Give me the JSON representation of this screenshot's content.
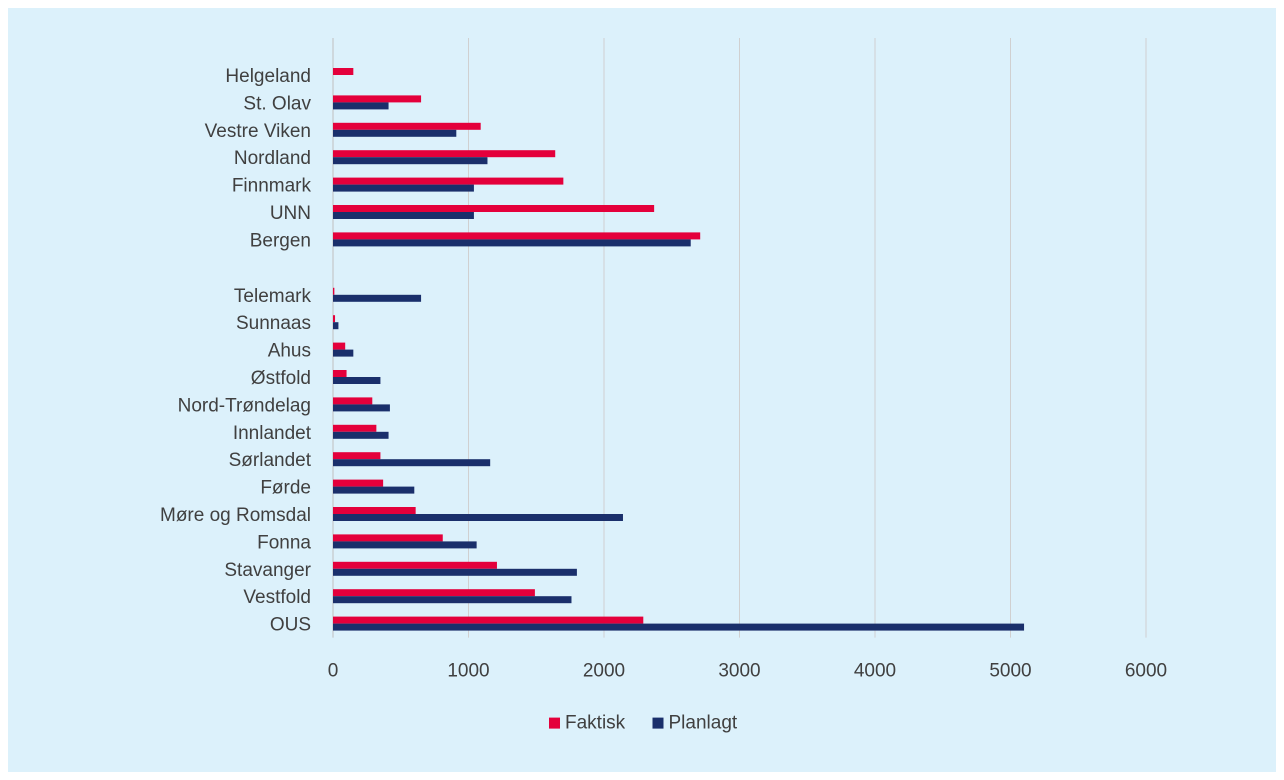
{
  "chart_data": {
    "type": "bar",
    "orientation": "horizontal",
    "groups": [
      [
        "Helgeland",
        "St. Olav",
        "Vestre Viken",
        "Nordland",
        "Finnmark",
        "UNN",
        "Bergen"
      ],
      [
        "Telemark",
        "Sunnaas",
        "Ahus",
        "Østfold",
        "Nord-Trøndelag",
        "Innlandet",
        "Sørlandet",
        "Førde",
        "Møre og Romsdal",
        "Fonna",
        "Stavanger",
        "Vestfold",
        "OUS"
      ]
    ],
    "categories": [
      "Helgeland",
      "St. Olav",
      "Vestre Viken",
      "Nordland",
      "Finnmark",
      "UNN",
      "Bergen",
      "Telemark",
      "Sunnaas",
      "Ahus",
      "Østfold",
      "Nord-Trøndelag",
      "Innlandet",
      "Sørlandet",
      "Førde",
      "Møre og Romsdal",
      "Fonna",
      "Stavanger",
      "Vestfold",
      "OUS"
    ],
    "series": [
      {
        "name": "Faktisk",
        "color": "#e4003b",
        "values": [
          150,
          650,
          1090,
          1640,
          1700,
          2370,
          2710,
          10,
          15,
          90,
          100,
          290,
          320,
          350,
          370,
          610,
          810,
          1210,
          1490,
          2290
        ]
      },
      {
        "name": "Planlagt",
        "color": "#1a2f6b",
        "values": [
          0,
          410,
          910,
          1140,
          1040,
          1040,
          2640,
          650,
          40,
          150,
          350,
          420,
          410,
          1160,
          600,
          2140,
          1060,
          1800,
          1760,
          5100
        ]
      }
    ],
    "xlim": [
      0,
      6000
    ],
    "xticks": [
      0,
      1000,
      2000,
      3000,
      4000,
      5000,
      6000
    ],
    "grid": true,
    "legend_position": "bottom"
  }
}
